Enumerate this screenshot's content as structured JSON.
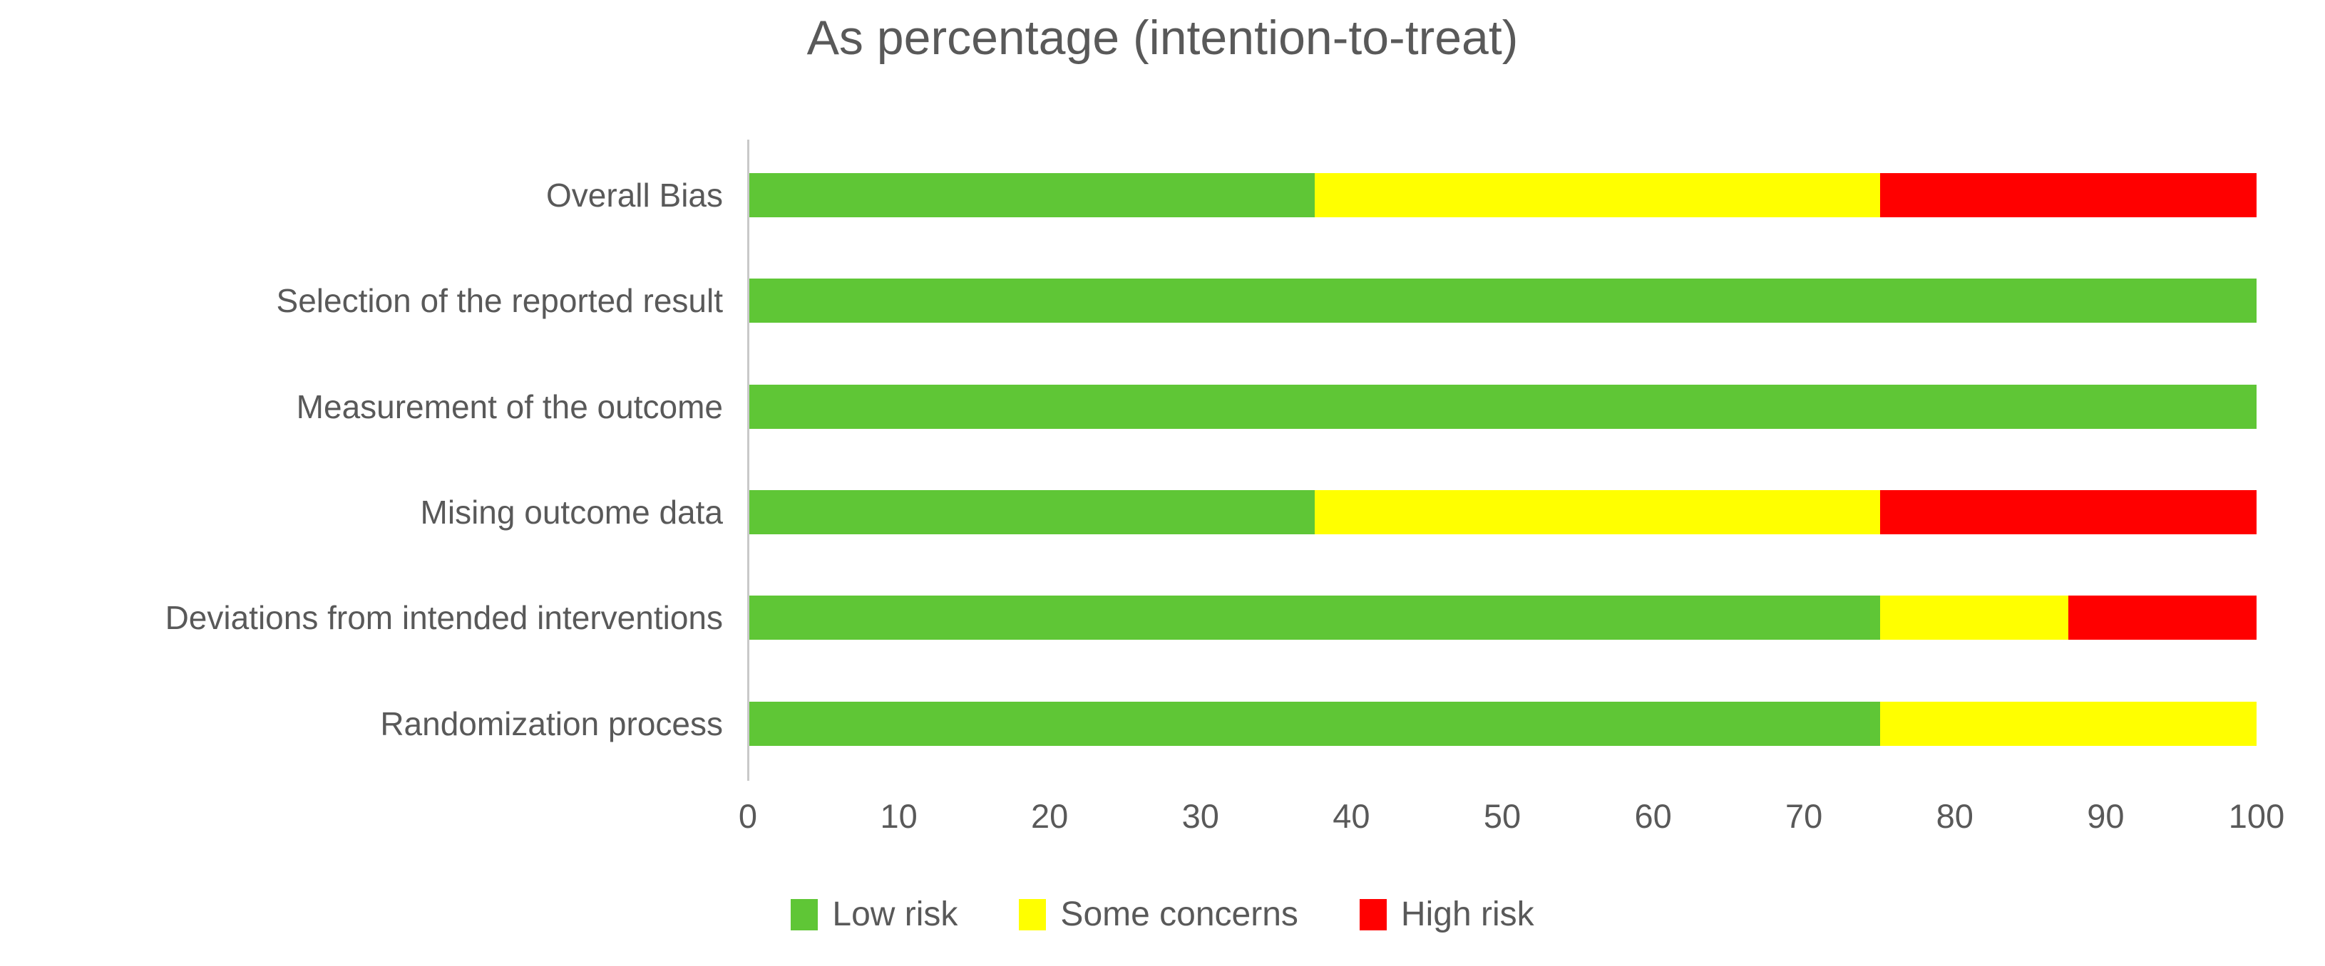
{
  "title": "As percentage (intention-to-treat)",
  "colors": {
    "low_risk": "#5FC636",
    "some_concerns": "#FFFF00",
    "high_risk": "#FF0000",
    "axis_line": "#C9C9C9",
    "text": "#595959"
  },
  "chart_data": {
    "type": "bar",
    "orientation": "horizontal",
    "stacked": true,
    "unit": "percent",
    "title": "As percentage (intention-to-treat)",
    "categories_top_to_bottom": [
      "Overall Bias",
      "Selection of the reported result",
      "Measurement of the outcome",
      "Mising outcome data",
      "Deviations from intended interventions",
      "Randomization process"
    ],
    "series": [
      {
        "name": "Low risk",
        "color": "#5FC636",
        "values": [
          37.5,
          100,
          100,
          37.5,
          75,
          75
        ]
      },
      {
        "name": "Some concerns",
        "color": "#FFFF00",
        "values": [
          37.5,
          0,
          0,
          37.5,
          12.5,
          25
        ]
      },
      {
        "name": "High risk",
        "color": "#FF0000",
        "values": [
          25,
          0,
          0,
          25,
          12.5,
          0
        ]
      }
    ],
    "xlabel": "",
    "ylabel": "",
    "xlim": [
      0,
      100
    ],
    "x_ticks": [
      0,
      10,
      20,
      30,
      40,
      50,
      60,
      70,
      80,
      90,
      100
    ],
    "grid": false,
    "legend_position": "bottom"
  }
}
